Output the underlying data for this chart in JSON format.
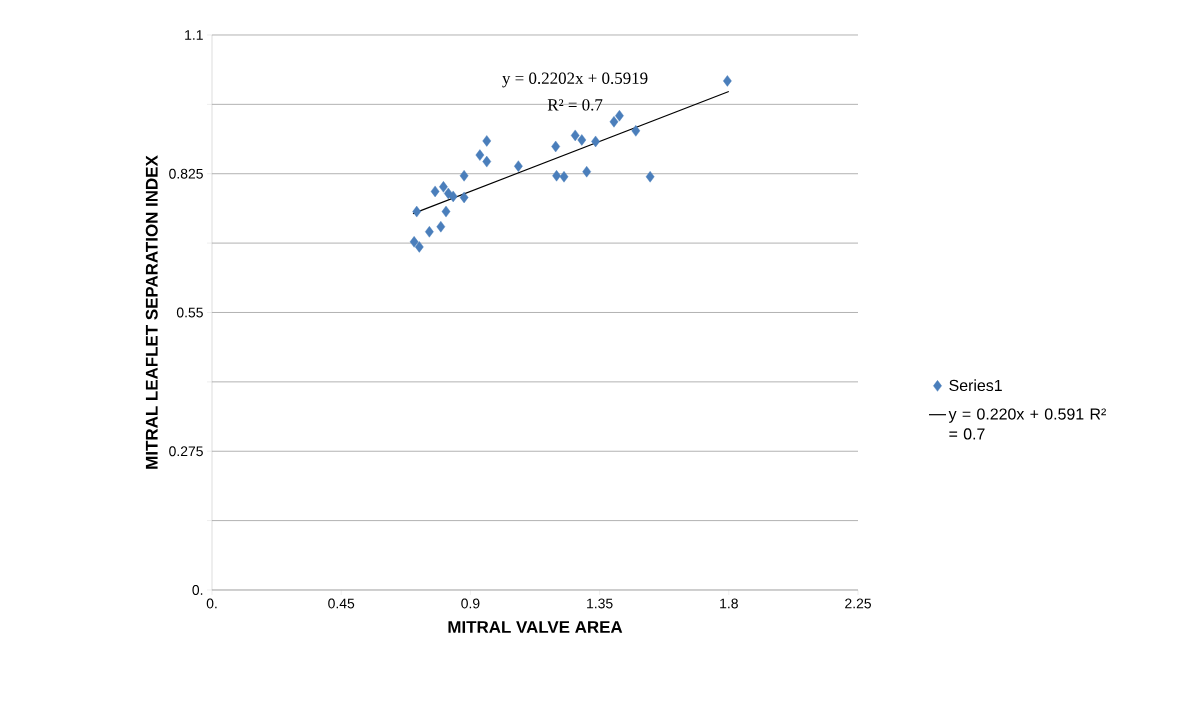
{
  "chart_data": {
    "type": "scatter",
    "xlabel": "MITRAL VALVE AREA",
    "ylabel": "MITRAL LEAFLET SEPARATION INDEX",
    "annotations": [
      "y = 0.2202x + 0.5919",
      "R² = 0.7"
    ],
    "xlim": [
      0,
      2.25
    ],
    "xticks": [
      {
        "value": 0,
        "label": "0."
      },
      0.45,
      0.9,
      1.35,
      1.8,
      2.25
    ],
    "ylim": [
      0,
      1.1
    ],
    "yticks": [
      {
        "value": 0,
        "label": "0."
      },
      {
        "value": 0.1375,
        "label": null
      },
      0.275,
      {
        "value": 0.4125,
        "label": null
      },
      0.55,
      {
        "value": 0.6875,
        "label": null
      },
      0.825,
      {
        "value": 0.9625,
        "label": null
      },
      1.1
    ],
    "grid": "y",
    "legend": "right",
    "series": [
      {
        "name": "Series1",
        "marker": "diamond",
        "color": "#4a7ebb",
        "x": [
          1.795,
          1.419,
          1.4,
          1.476,
          0.957,
          1.197,
          1.265,
          1.288,
          1.336,
          0.933,
          0.957,
          1.067,
          1.2,
          1.226,
          1.305,
          1.526,
          0.878,
          0.777,
          0.806,
          0.823,
          0.878,
          0.84,
          0.713,
          0.815,
          0.757,
          0.797,
          0.704,
          0.722
        ],
        "values": [
          1.009,
          0.94,
          0.928,
          0.91,
          0.89,
          0.879,
          0.901,
          0.892,
          0.889,
          0.862,
          0.849,
          0.84,
          0.821,
          0.819,
          0.829,
          0.819,
          0.821,
          0.79,
          0.799,
          0.786,
          0.778,
          0.78,
          0.75,
          0.75,
          0.71,
          0.72,
          0.69,
          0.68
        ]
      },
      {
        "name": "y = 0.220x + 0.591 R² = 0.7",
        "type": "line",
        "color": "#000000",
        "x": [
          0.7,
          1.8
        ],
        "values": [
          0.746,
          0.988
        ]
      }
    ]
  }
}
